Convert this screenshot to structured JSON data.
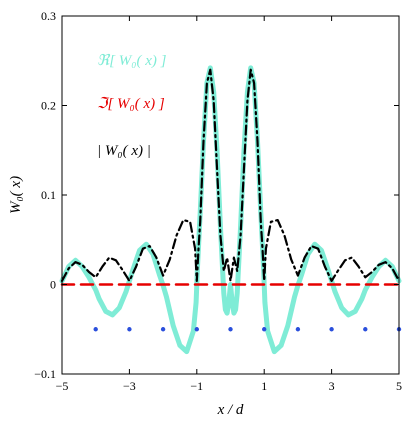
{
  "chart_data": {
    "type": "line",
    "xlabel": "x / d",
    "ylabel": "W₀( x)",
    "xlim": [
      -5,
      5
    ],
    "ylim": [
      -0.1,
      0.3
    ],
    "x_ticks": [
      -5,
      -3,
      -1,
      1,
      3,
      5
    ],
    "x_tick_labels": [
      "−5",
      "−3",
      "−1",
      "1",
      "3",
      "5"
    ],
    "y_ticks": [
      -0.1,
      0,
      0.1,
      0.2,
      0.3
    ],
    "y_tick_labels": [
      "−0.1",
      "0",
      "0.1",
      "0.2",
      "0.3"
    ],
    "grid": false,
    "legend_placement": "top-left",
    "colors": {
      "real": "#7fecd6",
      "imag": "#e60000",
      "abs": "#000000",
      "dots": "#2a4fdc"
    },
    "series": [
      {
        "name": "ℜ[ W₀( x) ]",
        "key": "real",
        "style": "solid-thick",
        "x": [
          -5,
          -4.9,
          -4.8,
          -4.6,
          -4.4,
          -4.2,
          -4.1,
          -4,
          -3.9,
          -3.7,
          -3.5,
          -3.3,
          -3.1,
          -3,
          -2.9,
          -2.7,
          -2.5,
          -2.3,
          -2.1,
          -2,
          -1.9,
          -1.7,
          -1.5,
          -1.3,
          -1.1,
          -1.02,
          -1,
          -0.98,
          -0.9,
          -0.8,
          -0.7,
          -0.6,
          -0.5,
          -0.4,
          -0.3,
          -0.2,
          -0.15,
          -0.1,
          -0.05,
          0,
          0.05,
          0.1,
          0.15,
          0.2,
          0.3,
          0.4,
          0.5,
          0.6,
          0.7,
          0.8,
          0.9,
          0.98,
          1,
          1.02,
          1.1,
          1.3,
          1.5,
          1.7,
          1.9,
          2,
          2.1,
          2.3,
          2.5,
          2.7,
          2.9,
          3,
          3.1,
          3.3,
          3.5,
          3.7,
          3.9,
          4,
          4.1,
          4.2,
          4.4,
          4.6,
          4.8,
          4.9,
          5
        ],
        "y": [
          0.004,
          0.012,
          0.02,
          0.027,
          0.02,
          0.008,
          0.001,
          -0.006,
          -0.016,
          -0.03,
          -0.034,
          -0.026,
          -0.008,
          0.004,
          0.016,
          0.038,
          0.045,
          0.034,
          0.01,
          -0.001,
          -0.014,
          -0.046,
          -0.068,
          -0.075,
          -0.052,
          -0.02,
          0.0,
          0.02,
          0.08,
          0.16,
          0.225,
          0.242,
          0.215,
          0.15,
          0.065,
          -0.01,
          -0.028,
          -0.032,
          -0.02,
          0.0,
          -0.02,
          -0.032,
          -0.028,
          -0.01,
          0.065,
          0.15,
          0.215,
          0.242,
          0.225,
          0.16,
          0.08,
          0.02,
          0.0,
          -0.02,
          -0.052,
          -0.075,
          -0.068,
          -0.046,
          -0.014,
          -0.001,
          0.01,
          0.034,
          0.045,
          0.038,
          0.016,
          0.004,
          -0.008,
          -0.026,
          -0.034,
          -0.03,
          -0.016,
          -0.006,
          0.001,
          0.008,
          0.02,
          0.027,
          0.02,
          0.012,
          0.004
        ]
      },
      {
        "name": "ℑ[ W₀( x) ]",
        "key": "imag",
        "style": "dashed",
        "x": [
          -5,
          5
        ],
        "y": [
          0,
          0
        ]
      },
      {
        "name": "| W₀( x) |",
        "key": "abs",
        "style": "dashdot",
        "x": [
          -5,
          -4.8,
          -4.6,
          -4.4,
          -4.2,
          -4,
          -3.8,
          -3.6,
          -3.4,
          -3.2,
          -3,
          -2.8,
          -2.6,
          -2.4,
          -2.2,
          -2,
          -1.8,
          -1.6,
          -1.4,
          -1.2,
          -1.05,
          -1,
          -0.95,
          -0.9,
          -0.8,
          -0.7,
          -0.6,
          -0.5,
          -0.4,
          -0.3,
          -0.2,
          -0.1,
          0,
          0.1,
          0.2,
          0.3,
          0.4,
          0.5,
          0.6,
          0.7,
          0.8,
          0.9,
          0.95,
          1,
          1.05,
          1.2,
          1.4,
          1.6,
          1.8,
          2,
          2.2,
          2.4,
          2.6,
          2.8,
          3,
          3.2,
          3.4,
          3.6,
          3.8,
          4,
          4.2,
          4.4,
          4.6,
          4.8,
          5
        ],
        "y": [
          0.004,
          0.018,
          0.025,
          0.022,
          0.014,
          0.008,
          0.02,
          0.03,
          0.027,
          0.016,
          0.004,
          0.02,
          0.04,
          0.043,
          0.03,
          0.01,
          0.028,
          0.055,
          0.072,
          0.07,
          0.04,
          0.004,
          0.04,
          0.07,
          0.16,
          0.225,
          0.24,
          0.205,
          0.13,
          0.055,
          0.015,
          0.03,
          0.004,
          0.03,
          0.015,
          0.055,
          0.13,
          0.205,
          0.24,
          0.225,
          0.16,
          0.07,
          0.04,
          0.004,
          0.04,
          0.07,
          0.072,
          0.055,
          0.028,
          0.01,
          0.03,
          0.043,
          0.04,
          0.02,
          0.004,
          0.016,
          0.027,
          0.03,
          0.02,
          0.008,
          0.014,
          0.022,
          0.025,
          0.018,
          0.004
        ]
      }
    ],
    "markers": {
      "y": -0.05,
      "x": [
        -4,
        -3,
        -2,
        -1,
        0,
        1,
        2,
        3,
        4,
        5
      ]
    }
  }
}
